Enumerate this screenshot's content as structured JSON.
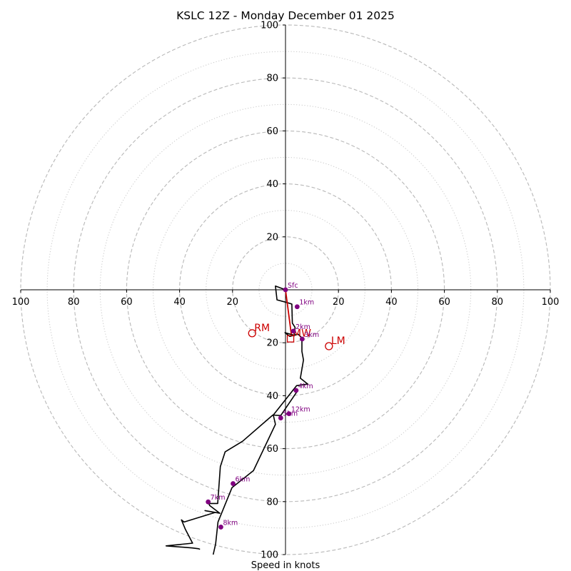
{
  "chart_data": {
    "type": "hodograph",
    "title": "KSLC 12Z - Monday December 01 2025",
    "xlabel": "Speed in knots",
    "units": "knots",
    "max_speed": 100,
    "ring_major": [
      20,
      40,
      60,
      80,
      100
    ],
    "ring_minor": [
      10,
      30,
      50,
      70,
      90
    ],
    "x_ticks": [
      {
        "value": -100,
        "label": "100"
      },
      {
        "value": -80,
        "label": "80"
      },
      {
        "value": -60,
        "label": "60"
      },
      {
        "value": -40,
        "label": "40"
      },
      {
        "value": -20,
        "label": "20"
      },
      {
        "value": 20,
        "label": "20"
      },
      {
        "value": 40,
        "label": "40"
      },
      {
        "value": 60,
        "label": "60"
      },
      {
        "value": 80,
        "label": "80"
      },
      {
        "value": 100,
        "label": "100"
      }
    ],
    "y_ticks": [
      {
        "value": 100,
        "label": "100"
      },
      {
        "value": 80,
        "label": "80"
      },
      {
        "value": 60,
        "label": "60"
      },
      {
        "value": 40,
        "label": "40"
      },
      {
        "value": 20,
        "label": "20"
      },
      {
        "value": -20,
        "label": "20"
      },
      {
        "value": -40,
        "label": "40"
      },
      {
        "value": -60,
        "label": "60"
      },
      {
        "value": -80,
        "label": "80"
      },
      {
        "value": -100,
        "label": "100"
      }
    ],
    "trace": {
      "color": "#000000",
      "points": [
        [
          0,
          0
        ],
        [
          -3.8,
          1.4
        ],
        [
          -3.2,
          -3.8
        ],
        [
          0.5,
          -4.8
        ],
        [
          2.4,
          -5.4
        ],
        [
          2.6,
          -12.6
        ],
        [
          3.6,
          -14.2
        ],
        [
          3.4,
          -17.2
        ],
        [
          -0.2,
          -16.2
        ],
        [
          1.6,
          -17.6
        ],
        [
          4.8,
          -16.8
        ],
        [
          6.2,
          -18.2
        ],
        [
          6.2,
          -23.3
        ],
        [
          6.8,
          -26.5
        ],
        [
          5.6,
          -33.4
        ],
        [
          8.4,
          -35.6
        ],
        [
          4.2,
          -36.2
        ],
        [
          -1.6,
          -43.5
        ],
        [
          -4.6,
          -47.3
        ],
        [
          -3.8,
          -50.8
        ],
        [
          -12.1,
          -68.3
        ],
        [
          -20.2,
          -74.7
        ],
        [
          -25.5,
          -87.7
        ],
        [
          -26.4,
          -96.0
        ],
        [
          -27.3,
          -100
        ]
      ],
      "overlay_points": [
        [
          4.8,
          -37.8
        ],
        [
          -1.8,
          -47.5
        ],
        [
          -4.8,
          -47.3
        ],
        [
          -16.2,
          -57.2
        ],
        [
          -22.8,
          -61.2
        ],
        [
          -24.6,
          -66.8
        ],
        [
          -25.6,
          -80.7
        ],
        [
          -29.0,
          -80.7
        ],
        [
          -28.6,
          -81.5
        ],
        [
          -24.8,
          -84.4
        ],
        [
          -30.4,
          -83.4
        ],
        [
          -26.6,
          -84.1
        ],
        [
          -38.3,
          -87.7
        ],
        [
          -39.3,
          -86.9
        ],
        [
          -37.8,
          -90.5
        ],
        [
          -35.1,
          -95.7
        ],
        [
          -45.1,
          -96.7
        ],
        [
          -35.2,
          -97.5
        ],
        [
          -32.8,
          -97.8
        ],
        [
          -32.3,
          -98.0
        ]
      ]
    },
    "height_markers": {
      "color": "#800080",
      "points": [
        {
          "label": "Sfc",
          "u": 0,
          "v": 0
        },
        {
          "label": "1km",
          "u": 4.4,
          "v": -6.4
        },
        {
          "label": "2km",
          "u": 3.0,
          "v": -15.6
        },
        {
          "label": "3km",
          "u": 6.3,
          "v": -18.6
        },
        {
          "label": "4km",
          "u": 4.0,
          "v": -38.0
        },
        {
          "label": "5km",
          "u": -1.8,
          "v": -48.4
        },
        {
          "label": "12km",
          "u": 1.3,
          "v": -46.8
        },
        {
          "label": "6km",
          "u": -19.8,
          "v": -73.2
        },
        {
          "label": "7km",
          "u": -29.2,
          "v": -80.1
        },
        {
          "label": "8km",
          "u": -24.4,
          "v": -89.6
        }
      ]
    },
    "bulk_shear": {
      "color": "#cc0000",
      "from": [
        0,
        0
      ],
      "to": [
        2.2,
        -16.8
      ]
    },
    "motions": {
      "color": "#cc0000",
      "points": [
        {
          "label": "RM",
          "u": -12.6,
          "v": -16.4,
          "marker": "circle"
        },
        {
          "label": "LM",
          "u": 16.4,
          "v": -21.3,
          "marker": "circle"
        },
        {
          "label": "MW",
          "u": 1.9,
          "v": -18.5,
          "marker": "square"
        }
      ]
    }
  }
}
